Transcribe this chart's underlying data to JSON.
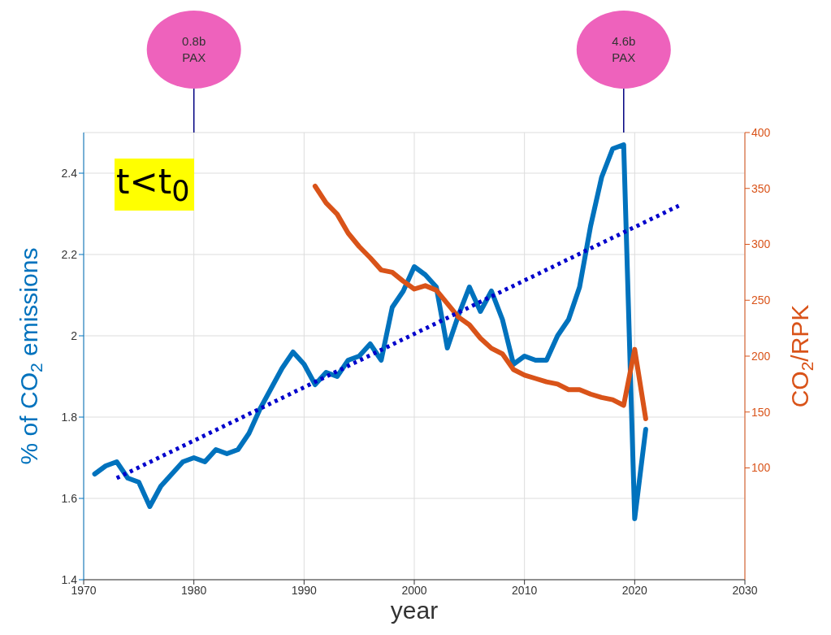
{
  "chart_data": {
    "type": "line",
    "xlabel": "year",
    "ylabel": "% of CO$_{2}$ emissions",
    "y2label": "CO$_{2}$/RPK",
    "xlim": [
      1970,
      2030
    ],
    "xticks": [
      1970,
      1980,
      1990,
      2000,
      2010,
      2020,
      2030
    ],
    "ylim": [
      1.4,
      2.5
    ],
    "yticks": [
      1.4,
      1.6,
      1.8,
      2,
      2.2,
      2.4
    ],
    "y2lim": [
      0,
      400
    ],
    "y2ticks": [
      100,
      150,
      200,
      250,
      300,
      350,
      400
    ],
    "grid": true,
    "series": [
      {
        "color": "#0072bd",
        "x": [
          1971,
          1972,
          1973,
          1974,
          1975,
          1976,
          1977,
          1978,
          1979,
          1980,
          1981,
          1982,
          1983,
          1984,
          1985,
          1986,
          1987,
          1988,
          1989,
          1990,
          1991,
          1992,
          1993,
          1994,
          1995,
          1996,
          1997,
          1998,
          1999,
          2000,
          2001,
          2002,
          2003,
          2004,
          2005,
          2006,
          2007,
          2008,
          2009,
          2010,
          2011,
          2012,
          2013,
          2014,
          2015,
          2016,
          2017,
          2018,
          2019,
          2020,
          2021
        ],
        "values": [
          1.66,
          1.68,
          1.69,
          1.65,
          1.64,
          1.58,
          1.63,
          1.66,
          1.69,
          1.7,
          1.69,
          1.72,
          1.71,
          1.72,
          1.76,
          1.82,
          1.87,
          1.92,
          1.96,
          1.93,
          1.88,
          1.91,
          1.9,
          1.94,
          1.95,
          1.98,
          1.94,
          2.07,
          2.11,
          2.17,
          2.15,
          2.12,
          1.97,
          2.05,
          2.12,
          2.06,
          2.11,
          2.04,
          1.93,
          1.95,
          1.94,
          1.94,
          2.0,
          2.04,
          2.12,
          2.27,
          2.39,
          2.46,
          2.47,
          1.55,
          1.77
        ]
      },
      {
        "color": "#d95319",
        "axis": "y2",
        "x": [
          1991,
          1992,
          1993,
          1994,
          1995,
          1996,
          1997,
          1998,
          1999,
          2000,
          2001,
          2002,
          2003,
          2004,
          2005,
          2006,
          2007,
          2008,
          2009,
          2010,
          2011,
          2012,
          2013,
          2014,
          2015,
          2016,
          2017,
          2018,
          2019,
          2020,
          2021
        ],
        "values": [
          352,
          337,
          327,
          310,
          298,
          288,
          277,
          275,
          267,
          260,
          263,
          259,
          247,
          235,
          228,
          216,
          207,
          202,
          188,
          183,
          180,
          177,
          175,
          170,
          170,
          166,
          163,
          161,
          156,
          206,
          144
        ]
      },
      {
        "type": "line",
        "color": "#0000cc",
        "line_style": "dotted",
        "x": [
          1973,
          2024
        ],
        "values": [
          1.65,
          2.32
        ]
      }
    ],
    "annotations": [
      "0.8b PAX",
      "4.6b PAX",
      "t<t$_{0}$"
    ]
  }
}
